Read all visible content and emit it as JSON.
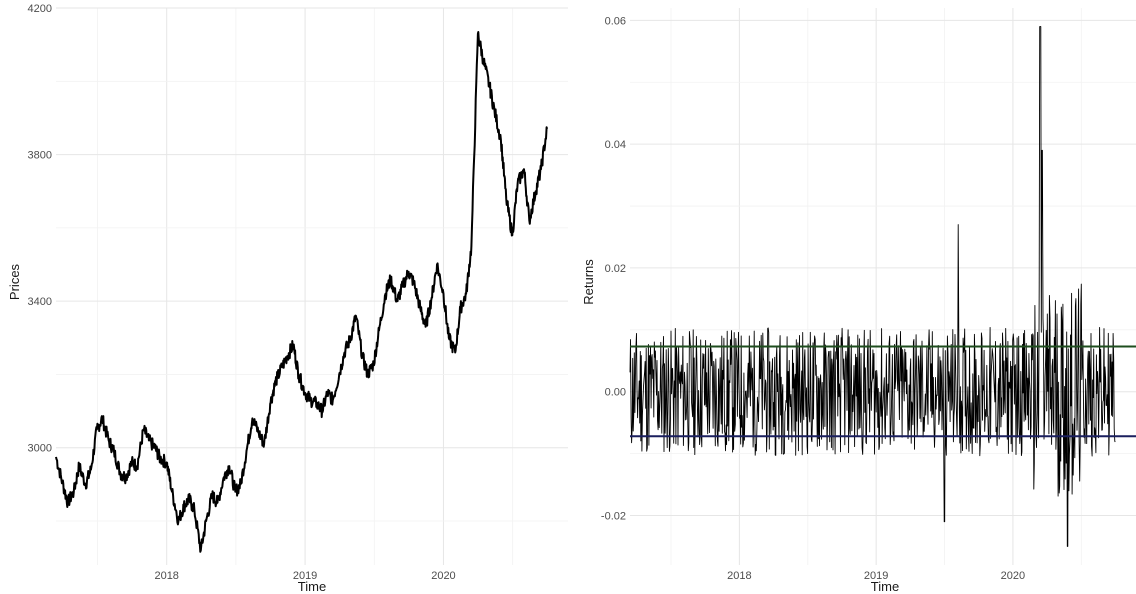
{
  "chart_data": [
    {
      "type": "line",
      "xlabel": "Time",
      "ylabel": "Prices",
      "x_ticks": [
        "2018",
        "2019",
        "2020"
      ],
      "y_ticks": [
        "3000",
        "3400",
        "3800",
        "4200"
      ],
      "xlim": [
        2017.2,
        2020.9
      ],
      "ylim": [
        2680,
        4200
      ],
      "grid": true,
      "line_color": "#000000",
      "series": [
        {
          "x": [
            "2017-03-15",
            "2017-04-01",
            "2017-04-15",
            "2017-05-01",
            "2017-05-15",
            "2017-06-01",
            "2017-06-15",
            "2017-07-01",
            "2017-07-15",
            "2017-08-01",
            "2017-08-15",
            "2017-09-01",
            "2017-09-15",
            "2017-10-01",
            "2017-10-15",
            "2017-11-01",
            "2017-11-15",
            "2017-12-01",
            "2017-12-15",
            "2018-01-01",
            "2018-01-15",
            "2018-02-01",
            "2018-02-15",
            "2018-03-01",
            "2018-03-15",
            "2018-04-01",
            "2018-04-15",
            "2018-05-01",
            "2018-05-15",
            "2018-06-01",
            "2018-06-15",
            "2018-07-01",
            "2018-07-15",
            "2018-08-01",
            "2018-08-15",
            "2018-09-01",
            "2018-09-15",
            "2018-10-01",
            "2018-10-15",
            "2018-11-01",
            "2018-11-15",
            "2018-12-01",
            "2018-12-15",
            "2019-01-01",
            "2019-01-15",
            "2019-02-01",
            "2019-02-15",
            "2019-03-01",
            "2019-03-15",
            "2019-04-01",
            "2019-04-15",
            "2019-05-01",
            "2019-05-15",
            "2019-06-01",
            "2019-06-15",
            "2019-07-01",
            "2019-07-15",
            "2019-08-01",
            "2019-08-15",
            "2019-09-01",
            "2019-09-15",
            "2019-10-01",
            "2019-10-15",
            "2019-11-01",
            "2019-11-15",
            "2019-12-01",
            "2019-12-15",
            "2020-01-01",
            "2020-01-15",
            "2020-02-01",
            "2020-02-15",
            "2020-03-01",
            "2020-03-15",
            "2020-04-01",
            "2020-04-15",
            "2020-05-01",
            "2020-05-15",
            "2020-06-01",
            "2020-06-15",
            "2020-07-01",
            "2020-07-15",
            "2020-08-01",
            "2020-08-15",
            "2020-09-01",
            "2020-09-15",
            "2020-10-01"
          ],
          "values": [
            2975,
            2905,
            2850,
            2880,
            2950,
            2900,
            2940,
            3050,
            3080,
            3020,
            2990,
            2930,
            2920,
            2960,
            2950,
            3050,
            3020,
            3000,
            2970,
            2960,
            2880,
            2800,
            2840,
            2860,
            2830,
            2720,
            2800,
            2870,
            2850,
            2920,
            2950,
            2880,
            2900,
            3000,
            3080,
            3040,
            3010,
            3120,
            3180,
            3220,
            3250,
            3280,
            3200,
            3150,
            3130,
            3120,
            3100,
            3150,
            3130,
            3200,
            3260,
            3300,
            3360,
            3250,
            3200,
            3230,
            3320,
            3420,
            3460,
            3400,
            3440,
            3480,
            3450,
            3380,
            3330,
            3410,
            3500,
            3420,
            3300,
            3260,
            3380,
            3420,
            3550,
            4130,
            4060,
            3990,
            3920,
            3840,
            3680,
            3580,
            3720,
            3760,
            3620,
            3700,
            3760,
            3870
          ]
        }
      ]
    },
    {
      "type": "line",
      "xlabel": "Time",
      "ylabel": "Returns",
      "x_ticks": [
        "2018",
        "2019",
        "2020"
      ],
      "y_ticks": [
        "-0.02",
        "0.00",
        "0.02",
        "0.04",
        "0.06"
      ],
      "xlim": [
        2017.2,
        2020.9
      ],
      "ylim": [
        -0.028,
        0.062
      ],
      "grid": true,
      "line_color": "#000000",
      "upper_band": 0.0073,
      "lower_band": -0.0072,
      "upper_band_color": "#1e4d1e",
      "lower_band_color": "#1a1f5e"
    }
  ]
}
